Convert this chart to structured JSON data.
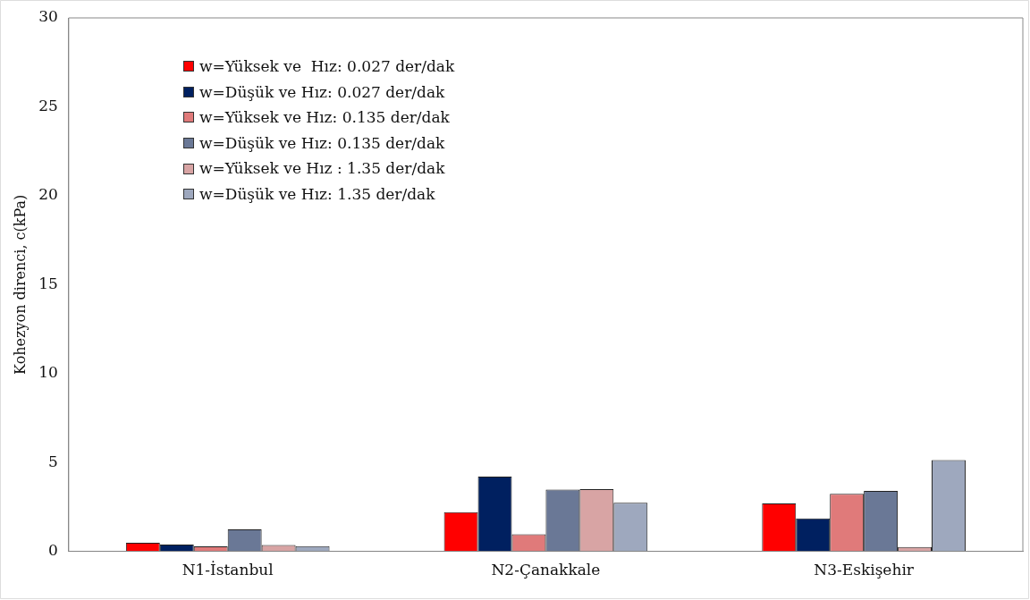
{
  "chart_data": {
    "type": "bar",
    "ylabel": "Kohezyon direnci, c(kPa)",
    "categories": [
      "N1-İstanbul",
      "N2-Çanakkale",
      "N3-Eskişehir"
    ],
    "series": [
      {
        "name": "w=Yüksek ve  Hız: 0.027 der/dak",
        "color": "#ff0000",
        "values": [
          0.48,
          2.2,
          2.7
        ]
      },
      {
        "name": "w=Düşük ve Hız: 0.027 der/dak",
        "color": "#002060",
        "values": [
          0.38,
          4.2,
          1.85
        ]
      },
      {
        "name": "w=Yüksek ve Hız: 0.135 der/dak",
        "color": "#e07a7a",
        "values": [
          0.28,
          0.96,
          3.23
        ]
      },
      {
        "name": "w=Düşük ve Hız: 0.135 der/dak",
        "color": "#6a7896",
        "values": [
          1.24,
          3.48,
          3.4
        ]
      },
      {
        "name": "w=Yüksek ve Hız : 1.35 der/dak",
        "color": "#d8a4a4",
        "values": [
          0.36,
          3.5,
          0.25
        ]
      },
      {
        "name": "w=Düşük ve Hız: 1.35 der/dak",
        "color": "#9ea8be",
        "values": [
          0.3,
          2.73,
          5.13
        ]
      }
    ],
    "ylim": [
      0,
      30
    ],
    "yticks": [
      0,
      5,
      10,
      15,
      20,
      25,
      30
    ],
    "grid": false,
    "legend": "top left"
  }
}
